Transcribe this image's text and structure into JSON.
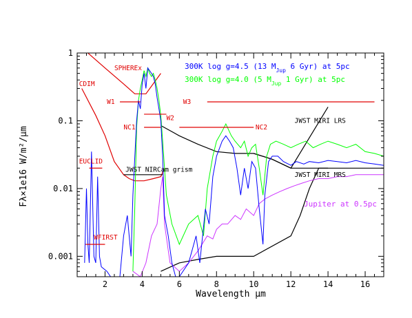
{
  "chart_data": {
    "type": "line",
    "xlabel": "Wavelength μm",
    "ylabel": "Fλ×1e16 W/m²/μm",
    "xlim": [
      0.5,
      17
    ],
    "ylim": [
      0.0005,
      1
    ],
    "yscale": "log",
    "x_ticks": [
      2,
      4,
      6,
      8,
      10,
      12,
      14,
      16
    ],
    "y_tick_labels": [
      "0.001",
      "0.01",
      "0.1",
      "1"
    ],
    "legend": [
      {
        "pre": "300K log g=4.5 (13 M",
        "sub": "Jup",
        "post": " 6 Gyr) at 5pc",
        "color": "#0000ff"
      },
      {
        "pre": "300K log g=4.0 (5 M",
        "sub": "Jup",
        "post": " 1 Gyr) at 5pc",
        "color": "#00ff00"
      }
    ],
    "series": [
      {
        "name": "300K log g=4.5 (13 MJup 6 Gyr) at 5pc",
        "color": "#0000ff",
        "points": [
          [
            0.9,
            0.0008
          ],
          [
            1.0,
            0.01
          ],
          [
            1.08,
            0.0015
          ],
          [
            1.15,
            0.0008
          ],
          [
            1.27,
            0.035
          ],
          [
            1.4,
            0.001
          ],
          [
            1.5,
            0.0008
          ],
          [
            1.6,
            0.015
          ],
          [
            1.7,
            0.001
          ],
          [
            1.8,
            0.0007
          ],
          [
            2.1,
            0.0006
          ],
          [
            2.3,
            0.0005
          ],
          [
            2.8,
            0.0005
          ],
          [
            3.0,
            0.002
          ],
          [
            3.2,
            0.004
          ],
          [
            3.4,
            0.001
          ],
          [
            3.5,
            0.008
          ],
          [
            3.7,
            0.1
          ],
          [
            3.8,
            0.2
          ],
          [
            3.9,
            0.15
          ],
          [
            4.0,
            0.35
          ],
          [
            4.1,
            0.5
          ],
          [
            4.2,
            0.3
          ],
          [
            4.3,
            0.6
          ],
          [
            4.4,
            0.55
          ],
          [
            4.5,
            0.5
          ],
          [
            4.6,
            0.45
          ],
          [
            4.7,
            0.35
          ],
          [
            4.8,
            0.22
          ],
          [
            4.9,
            0.15
          ],
          [
            5.0,
            0.1
          ],
          [
            5.1,
            0.03
          ],
          [
            5.2,
            0.004
          ],
          [
            5.4,
            0.002
          ],
          [
            5.6,
            0.0008
          ],
          [
            5.8,
            0.0005
          ],
          [
            6.0,
            0.0005
          ],
          [
            6.5,
            0.0008
          ],
          [
            6.9,
            0.002
          ],
          [
            7.1,
            0.0008
          ],
          [
            7.4,
            0.005
          ],
          [
            7.6,
            0.003
          ],
          [
            7.8,
            0.015
          ],
          [
            8.0,
            0.03
          ],
          [
            8.3,
            0.05
          ],
          [
            8.5,
            0.06
          ],
          [
            8.7,
            0.05
          ],
          [
            8.9,
            0.04
          ],
          [
            9.1,
            0.02
          ],
          [
            9.3,
            0.008
          ],
          [
            9.5,
            0.02
          ],
          [
            9.7,
            0.01
          ],
          [
            9.9,
            0.025
          ],
          [
            10.1,
            0.02
          ],
          [
            10.3,
            0.005
          ],
          [
            10.5,
            0.0015
          ],
          [
            10.6,
            0.008
          ],
          [
            10.8,
            0.025
          ],
          [
            11.0,
            0.03
          ],
          [
            11.3,
            0.03
          ],
          [
            11.6,
            0.025
          ],
          [
            12.0,
            0.022
          ],
          [
            12.3,
            0.025
          ],
          [
            12.7,
            0.023
          ],
          [
            13.0,
            0.025
          ],
          [
            13.5,
            0.024
          ],
          [
            14.0,
            0.026
          ],
          [
            14.5,
            0.025
          ],
          [
            15.0,
            0.024
          ],
          [
            15.5,
            0.026
          ],
          [
            16.0,
            0.024
          ],
          [
            16.5,
            0.023
          ],
          [
            17.0,
            0.022
          ]
        ]
      },
      {
        "name": "300K log g=4.0 (5 MJup 1 Gyr) at 5pc",
        "color": "#00ff00",
        "points": [
          [
            3.5,
            0.0006
          ],
          [
            3.6,
            0.005
          ],
          [
            3.7,
            0.08
          ],
          [
            3.8,
            0.2
          ],
          [
            3.9,
            0.3
          ],
          [
            4.0,
            0.4
          ],
          [
            4.1,
            0.55
          ],
          [
            4.2,
            0.45
          ],
          [
            4.3,
            0.6
          ],
          [
            4.4,
            0.5
          ],
          [
            4.5,
            0.45
          ],
          [
            4.6,
            0.5
          ],
          [
            4.7,
            0.4
          ],
          [
            4.8,
            0.3
          ],
          [
            4.9,
            0.2
          ],
          [
            5.0,
            0.12
          ],
          [
            5.1,
            0.05
          ],
          [
            5.3,
            0.008
          ],
          [
            5.6,
            0.003
          ],
          [
            6.0,
            0.0015
          ],
          [
            6.5,
            0.003
          ],
          [
            7.0,
            0.004
          ],
          [
            7.3,
            0.002
          ],
          [
            7.5,
            0.01
          ],
          [
            7.8,
            0.03
          ],
          [
            8.0,
            0.05
          ],
          [
            8.3,
            0.07
          ],
          [
            8.5,
            0.09
          ],
          [
            8.8,
            0.06
          ],
          [
            9.0,
            0.05
          ],
          [
            9.3,
            0.04
          ],
          [
            9.5,
            0.05
          ],
          [
            9.7,
            0.03
          ],
          [
            9.9,
            0.04
          ],
          [
            10.1,
            0.045
          ],
          [
            10.3,
            0.02
          ],
          [
            10.5,
            0.008
          ],
          [
            10.7,
            0.03
          ],
          [
            10.9,
            0.045
          ],
          [
            11.2,
            0.05
          ],
          [
            11.6,
            0.045
          ],
          [
            12.0,
            0.04
          ],
          [
            12.4,
            0.045
          ],
          [
            12.8,
            0.05
          ],
          [
            13.2,
            0.04
          ],
          [
            13.6,
            0.045
          ],
          [
            14.0,
            0.05
          ],
          [
            14.5,
            0.045
          ],
          [
            15.0,
            0.04
          ],
          [
            15.5,
            0.045
          ],
          [
            16.0,
            0.035
          ],
          [
            16.5,
            0.033
          ],
          [
            17.0,
            0.03
          ]
        ]
      },
      {
        "name": "Jupiter at 0.5pc",
        "color": "#cc33ff",
        "points": [
          [
            3.5,
            0.0006
          ],
          [
            3.9,
            0.0005
          ],
          [
            4.2,
            0.0008
          ],
          [
            4.5,
            0.002
          ],
          [
            4.8,
            0.003
          ],
          [
            5.0,
            0.01
          ],
          [
            5.1,
            0.015
          ],
          [
            5.2,
            0.003
          ],
          [
            5.5,
            0.0008
          ],
          [
            6.0,
            0.0006
          ],
          [
            6.5,
            0.0008
          ],
          [
            7.0,
            0.0012
          ],
          [
            7.5,
            0.002
          ],
          [
            7.8,
            0.0018
          ],
          [
            8.0,
            0.0025
          ],
          [
            8.3,
            0.003
          ],
          [
            8.6,
            0.003
          ],
          [
            9.0,
            0.004
          ],
          [
            9.3,
            0.0035
          ],
          [
            9.6,
            0.005
          ],
          [
            10.0,
            0.004
          ],
          [
            10.3,
            0.006
          ],
          [
            10.6,
            0.007
          ],
          [
            11.0,
            0.008
          ],
          [
            11.4,
            0.009
          ],
          [
            11.8,
            0.01
          ],
          [
            12.2,
            0.011
          ],
          [
            12.6,
            0.012
          ],
          [
            13.0,
            0.013
          ],
          [
            13.5,
            0.014
          ],
          [
            14.0,
            0.014
          ],
          [
            14.5,
            0.015
          ],
          [
            15.0,
            0.015
          ],
          [
            15.5,
            0.016
          ],
          [
            16.0,
            0.016
          ],
          [
            16.5,
            0.016
          ],
          [
            17.0,
            0.016
          ]
        ]
      }
    ],
    "filters": [
      {
        "label": "W1",
        "x0": 2.8,
        "x1": 3.9,
        "y": 0.19,
        "color": "#e00000",
        "lx": 2.1,
        "ly": 0.19
      },
      {
        "label": "W2",
        "x0": 4.1,
        "x1": 5.3,
        "y": 0.125,
        "color": "#e00000",
        "lx": 5.3,
        "ly": 0.11
      },
      {
        "label": "W3",
        "x0": 7.5,
        "x1": 16.5,
        "y": 0.19,
        "color": "#e00000",
        "lx": 6.2,
        "ly": 0.19
      },
      {
        "label": "NC1",
        "x0": 4.1,
        "x1": 5.0,
        "y": 0.08,
        "color": "#e00000",
        "lx": 3.0,
        "ly": 0.08
      },
      {
        "label": "NC2",
        "x0": 6.0,
        "x1": 10.0,
        "y": 0.08,
        "color": "#e00000",
        "lx": 10.1,
        "ly": 0.08
      },
      {
        "label": "EUCLID",
        "x0": 1.15,
        "x1": 1.85,
        "y": 0.02,
        "color": "#e00000",
        "lx": 0.6,
        "ly": 0.025
      },
      {
        "label": "WFIRST",
        "x0": 0.95,
        "x1": 2.0,
        "y": 0.0015,
        "color": "#e00000",
        "lx": 1.4,
        "ly": 0.0019
      }
    ],
    "instrument_curves": [
      {
        "name": "SPHEREx",
        "color": "#e00000",
        "points": [
          [
            0.75,
            1.2
          ],
          [
            2.0,
            0.6
          ],
          [
            3.0,
            0.35
          ],
          [
            3.6,
            0.25
          ],
          [
            4.2,
            0.25
          ],
          [
            5.0,
            0.5
          ]
        ],
        "label": "SPHEREx",
        "lx": 2.5,
        "ly": 0.6
      },
      {
        "name": "CDIM",
        "color": "#e00000",
        "points": [
          [
            0.75,
            0.3
          ],
          [
            1.5,
            0.12
          ],
          [
            2.0,
            0.06
          ],
          [
            2.5,
            0.025
          ],
          [
            3.0,
            0.016
          ],
          [
            3.3,
            0.014
          ],
          [
            3.6,
            0.013
          ],
          [
            4.1,
            0.013
          ],
          [
            4.6,
            0.014
          ],
          [
            5.0,
            0.015
          ],
          [
            5.2,
            0.02
          ]
        ],
        "label": "CDIM",
        "lx": 0.6,
        "ly": 0.35
      },
      {
        "name": "JWST NIRCam grism",
        "color": "#000000",
        "points": [
          [
            3.0,
            0.016
          ],
          [
            5.1,
            0.016
          ]
        ],
        "label": "JWST NIRCam grism",
        "lx": 3.1,
        "ly": 0.019
      },
      {
        "name": "JWST MIRI LRS",
        "color": "#000000",
        "points": [
          [
            5.0,
            0.085
          ],
          [
            6.0,
            0.06
          ],
          [
            7.0,
            0.045
          ],
          [
            8.0,
            0.035
          ],
          [
            9.0,
            0.033
          ],
          [
            10.0,
            0.033
          ],
          [
            11.0,
            0.027
          ],
          [
            12.0,
            0.02
          ],
          [
            13.0,
            0.02
          ],
          [
            14.0,
            0.02
          ]
        ],
        "label": "JWST MIRI LRS",
        "lx": 12.2,
        "ly": 0.1
      },
      {
        "name": "JWST MIRI LRS (upper)",
        "color": "#000000",
        "points": [
          [
            10.0,
            0.033
          ],
          [
            11.0,
            0.027
          ],
          [
            12.0,
            0.02
          ],
          [
            14.0,
            0.16
          ]
        ]
      },
      {
        "name": "JWST MIRI MRS",
        "color": "#000000",
        "points": [
          [
            5.0,
            0.0006
          ],
          [
            6.0,
            0.0008
          ],
          [
            7.0,
            0.0009
          ],
          [
            8.0,
            0.001
          ],
          [
            10.0,
            0.001
          ],
          [
            12.0,
            0.002
          ],
          [
            12.5,
            0.004
          ],
          [
            13.0,
            0.01
          ],
          [
            13.5,
            0.02
          ],
          [
            14.0,
            0.02
          ],
          [
            17.0,
            0.02
          ]
        ],
        "label": "JWST MIRI MRS",
        "lx": 12.2,
        "ly": 0.016
      }
    ],
    "annotations": [
      {
        "text": "Jupiter at 0.5pc",
        "x": 12.7,
        "y": 0.006,
        "color": "#cc33ff"
      }
    ]
  }
}
